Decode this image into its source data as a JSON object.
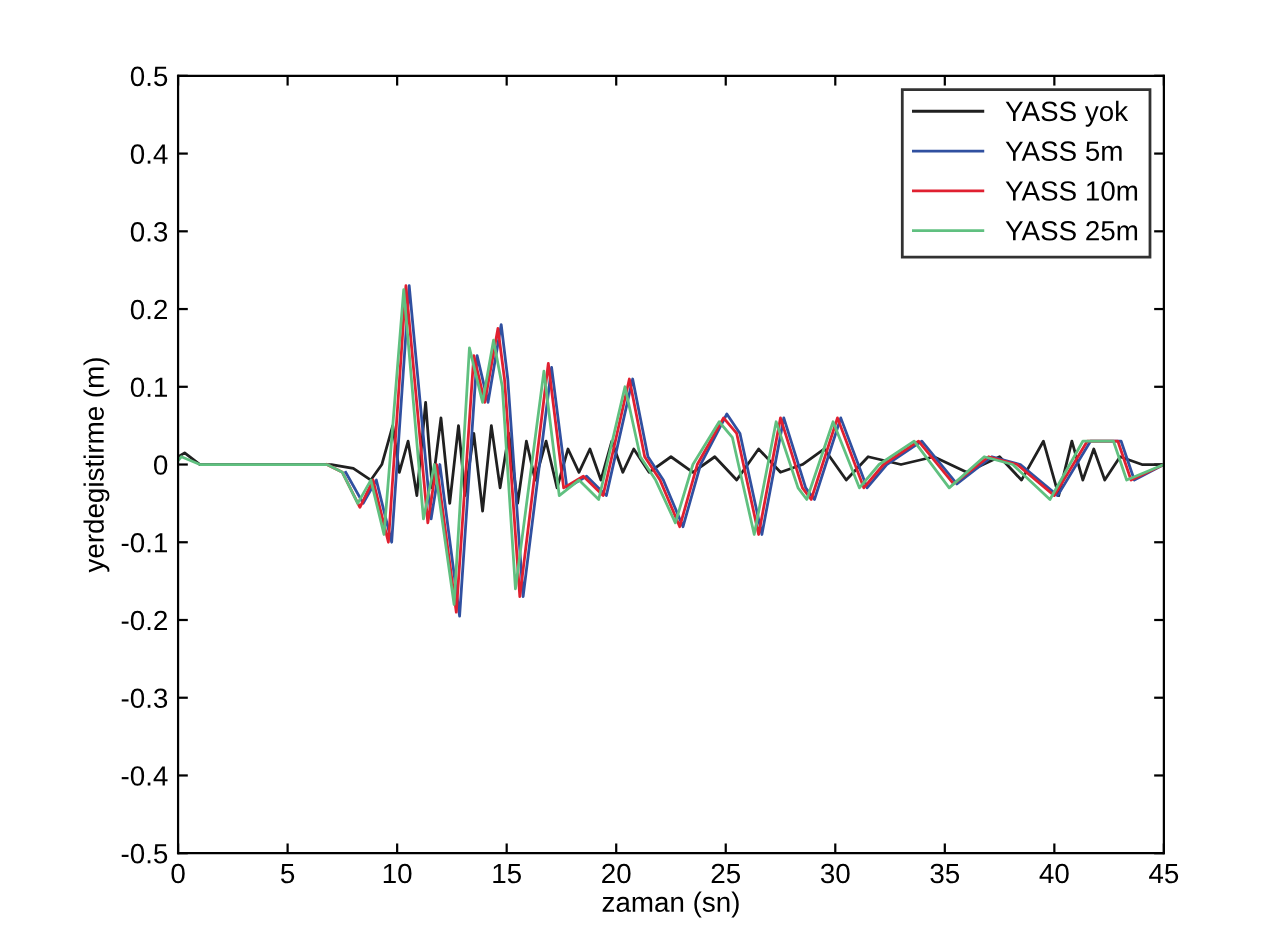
{
  "chart_data": {
    "type": "line",
    "xlabel": "zaman (sn)",
    "ylabel": "yerdegistirme (m)",
    "xlim": [
      0,
      45
    ],
    "ylim": [
      -0.5,
      0.5
    ],
    "xticks": [
      0,
      5,
      10,
      15,
      20,
      25,
      30,
      35,
      40,
      45
    ],
    "yticks": [
      -0.5,
      -0.4,
      -0.3,
      -0.2,
      -0.1,
      0,
      0.1,
      0.2,
      0.3,
      0.4,
      0.5
    ],
    "grid": false,
    "legend": "top right",
    "series": [
      {
        "name": "YASS yok",
        "color": "#202020",
        "x": [
          0,
          0.3,
          1,
          5,
          7,
          8,
          8.8,
          9.3,
          9.8,
          10.1,
          10.5,
          10.9,
          11.3,
          11.6,
          12.0,
          12.4,
          12.8,
          13.1,
          13.5,
          13.9,
          14.3,
          14.7,
          15.1,
          15.5,
          15.9,
          16.3,
          16.8,
          17.3,
          17.8,
          18.3,
          18.8,
          19.3,
          19.8,
          20.3,
          20.8,
          21.5,
          22.5,
          23.5,
          24.5,
          25.5,
          26.5,
          27.5,
          28.5,
          29.5,
          30.5,
          31.5,
          33,
          34.5,
          36,
          37.5,
          38.5,
          39.5,
          40.2,
          40.8,
          41.3,
          41.8,
          42.3,
          43,
          44,
          45
        ],
        "values": [
          0.01,
          0.015,
          0.0,
          0.0,
          0.0,
          -0.005,
          -0.02,
          0.0,
          0.05,
          -0.01,
          0.03,
          -0.04,
          0.08,
          -0.03,
          0.06,
          -0.05,
          0.05,
          -0.04,
          0.04,
          -0.06,
          0.05,
          -0.03,
          0.04,
          -0.05,
          0.03,
          -0.02,
          0.03,
          -0.03,
          0.02,
          -0.01,
          0.02,
          -0.02,
          0.03,
          -0.01,
          0.02,
          -0.01,
          0.01,
          -0.01,
          0.01,
          -0.02,
          0.02,
          -0.01,
          0.0,
          0.02,
          -0.02,
          0.01,
          0.0,
          0.01,
          -0.01,
          0.01,
          -0.02,
          0.03,
          -0.04,
          0.03,
          -0.02,
          0.02,
          -0.02,
          0.01,
          0.0,
          0.0
        ]
      },
      {
        "name": "YASS 5m",
        "color": "#3050a0",
        "x": [
          7.65,
          8.45,
          9.05,
          9.75,
          10.55,
          11.55,
          11.95,
          12.85,
          13.65,
          14.15,
          14.75,
          15.05,
          15.75,
          17.05,
          17.75,
          18.65,
          19.55,
          20.75,
          21.45,
          22.15,
          23.05,
          23.85,
          25.05,
          25.65,
          26.65,
          27.65,
          28.65,
          29.05,
          30.25,
          31.45,
          32.35,
          33.95,
          35.55,
          37.15,
          38.45,
          40.15,
          41.65,
          43.05,
          43.65,
          45
        ],
        "values": [
          -0.01,
          -0.05,
          -0.02,
          -0.1,
          0.23,
          -0.07,
          0,
          -0.195,
          0.14,
          0.08,
          0.18,
          0.11,
          -0.17,
          0.125,
          -0.03,
          -0.015,
          -0.04,
          0.11,
          0.01,
          -0.02,
          -0.08,
          0,
          0.065,
          0.04,
          -0.09,
          0.06,
          -0.03,
          -0.045,
          0.06,
          -0.03,
          0,
          0.03,
          -0.025,
          0.01,
          0,
          -0.04,
          0.03,
          0.03,
          -0.02,
          0
        ]
      },
      {
        "name": "YASS 10m",
        "color": "#e02030",
        "x": [
          6.8,
          7.5,
          8.3,
          8.9,
          9.6,
          10.4,
          11.4,
          11.8,
          12.7,
          13.5,
          14.0,
          14.6,
          14.9,
          15.6,
          16.9,
          17.6,
          18.5,
          19.4,
          20.6,
          21.3,
          22.0,
          22.9,
          23.7,
          24.9,
          25.5,
          26.5,
          27.5,
          28.5,
          28.9,
          30.1,
          31.3,
          32.2,
          33.8,
          35.4,
          37.0,
          38.3,
          40.0,
          41.5,
          42.9,
          43.5,
          45
        ],
        "values": [
          0,
          -0.01,
          -0.055,
          -0.02,
          -0.1,
          0.23,
          -0.075,
          0,
          -0.19,
          0.14,
          0.08,
          0.175,
          0.11,
          -0.17,
          0.13,
          -0.03,
          -0.015,
          -0.04,
          0.11,
          0.01,
          -0.02,
          -0.08,
          0,
          0.06,
          0.04,
          -0.09,
          0.06,
          -0.03,
          -0.045,
          0.06,
          -0.03,
          0,
          0.03,
          -0.025,
          0.01,
          0,
          -0.04,
          0.03,
          0.03,
          -0.02,
          0
        ]
      },
      {
        "name": "YASS 25m",
        "color": "#60c080",
        "x": [
          0,
          0.15,
          1,
          3,
          5,
          6.8,
          7.5,
          8.2,
          8.8,
          9.4,
          10.3,
          11.2,
          11.7,
          12.6,
          13.3,
          13.9,
          14.4,
          14.8,
          15.4,
          16.7,
          17.4,
          18.3,
          19.2,
          20.4,
          21.1,
          21.8,
          22.7,
          23.5,
          24.7,
          25.3,
          26.3,
          27.3,
          28.3,
          28.7,
          29.9,
          31.1,
          32.0,
          33.6,
          35.2,
          36.8,
          38.1,
          39.8,
          41.3,
          42.7,
          43.3,
          45
        ],
        "values": [
          0.005,
          0.01,
          0,
          0,
          0,
          0,
          -0.01,
          -0.05,
          -0.02,
          -0.09,
          0.225,
          -0.07,
          0,
          -0.18,
          0.15,
          0.08,
          0.16,
          0.1,
          -0.16,
          0.12,
          -0.04,
          -0.02,
          -0.045,
          0.1,
          0.01,
          -0.02,
          -0.075,
          0,
          0.055,
          0.035,
          -0.09,
          0.055,
          -0.03,
          -0.045,
          0.055,
          -0.03,
          0,
          0.03,
          -0.03,
          0.01,
          0,
          -0.045,
          0.03,
          0.03,
          -0.02,
          0
        ]
      }
    ]
  }
}
